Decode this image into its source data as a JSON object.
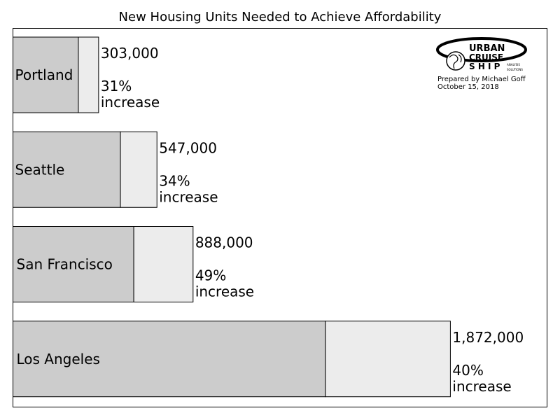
{
  "chart_data": {
    "type": "bar",
    "title": "New Housing Units Needed to Achieve Affordability",
    "categories": [
      "Portland",
      "Seattle",
      "San Francisco",
      "Los Angeles"
    ],
    "series": [
      {
        "values": [
          980000,
          1610000,
          1810000,
          4680000
        ]
      },
      {
        "values": [
          303000,
          547000,
          888000,
          1872000
        ]
      }
    ],
    "data_labels": [
      "303,000",
      "547,000",
      "888,000",
      "1,872,000"
    ],
    "increase_labels": [
      "31%",
      "34%",
      "49%",
      "40%"
    ],
    "increase_word": "increase",
    "xlim": [
      0,
      8000000
    ],
    "colors": {
      "existing": "#cccccc",
      "needed": "#ececec",
      "stroke": "#000000"
    },
    "orientation": "horizontal",
    "stacked": true,
    "grid": false
  },
  "logo": {
    "line1": "URBAN",
    "line2": "CRUISE",
    "line3": "S H I P",
    "tag1": "ANALYSIS",
    "tag2": "SOLUTIONS",
    "prepared_by": "Prepared by Michael Goff",
    "date": "October 15, 2018"
  }
}
